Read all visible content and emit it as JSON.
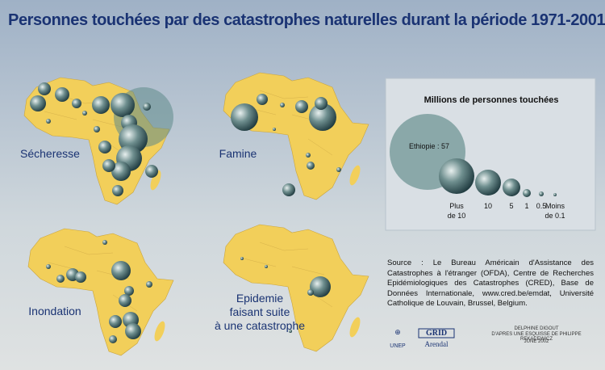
{
  "title": "Personnes touchées par des catastrophes naturelles durant la période 1971-2001",
  "maps": [
    {
      "label_lines": [
        "Sécheresse"
      ]
    },
    {
      "label_lines": [
        "Famine"
      ]
    },
    {
      "label_lines": [
        "Inondation"
      ]
    },
    {
      "label_lines": [
        "Epidemie",
        "faisant suite",
        "à une catastrophe"
      ]
    }
  ],
  "legend": {
    "title": "Millions de personnes touchées",
    "highlight": "Ethiopie : 57",
    "sizes": [
      [
        "Plus",
        "de 10"
      ],
      [
        "10"
      ],
      [
        "5"
      ],
      [
        "1"
      ],
      [
        "0.5"
      ],
      [
        "Moins",
        "de 0.1"
      ]
    ]
  },
  "source": "Source : Le Bureau Américain d'Assistance des Catastrophes à l'étranger (OFDA), Centre de Recherches Epidémiologiques des Catastrophes (CRED), Base de Données Internationale, www.cred.be/emdat, Université Catholique de Louvain, Brussel, Belgium.",
  "logos": {
    "unep": "UNEP",
    "grid": "GRID",
    "arendal": "Arendal"
  },
  "credits": [
    "DELPHINE DIGOUT",
    "D'APRES UNE ESQUISSE DE PHILIPPE REKACEWICZ",
    "JUNE 2002"
  ]
}
